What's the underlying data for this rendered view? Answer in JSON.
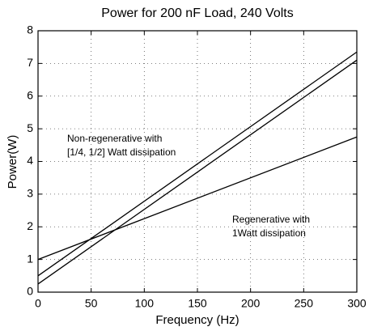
{
  "chart_data": {
    "type": "line",
    "title": "Power for 200 nF Load, 240 Volts",
    "xlabel": "Frequency (Hz)",
    "ylabel": "Power(W)",
    "x": [
      0,
      300
    ],
    "series": [
      {
        "color": "#000000",
        "values": [
          0.5,
          7.35
        ]
      },
      {
        "color": "#000000",
        "values": [
          0.25,
          7.1
        ]
      },
      {
        "color": "#000000",
        "values": [
          1.0,
          4.75
        ]
      }
    ],
    "annotations": [
      {
        "lines": [
          "Non-regenerative with",
          "[1/4, 1/2] Watt dissipation"
        ]
      },
      {
        "lines": [
          "Regenerative with",
          "1Watt dissipation"
        ]
      }
    ],
    "xlim": [
      0,
      300
    ],
    "xticks": [
      0,
      50,
      100,
      150,
      200,
      250,
      300
    ],
    "ylim": [
      0,
      8
    ],
    "yticks": [
      0,
      1,
      2,
      3,
      4,
      5,
      6,
      7,
      8
    ],
    "grid": true
  }
}
